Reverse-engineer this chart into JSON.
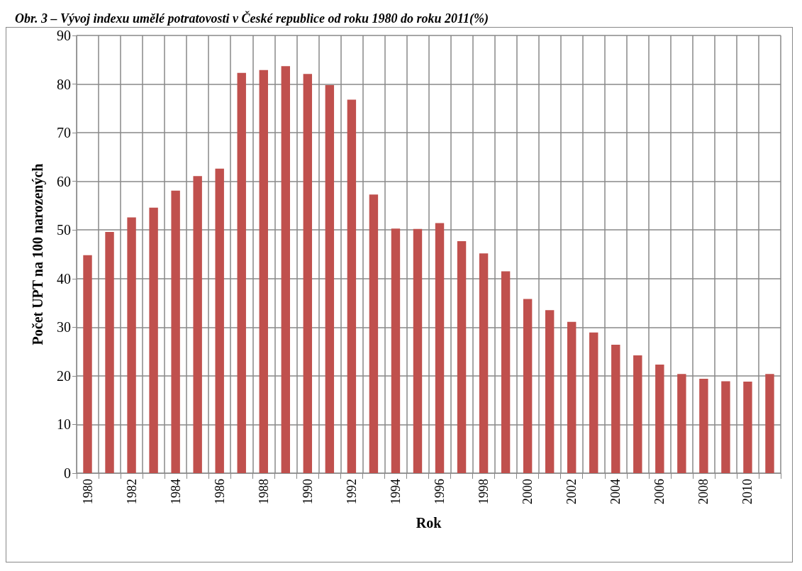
{
  "chart_data": {
    "type": "bar",
    "title": "Obr. 3 – Vývoj indexu umělé potratovosti v České republice od roku 1980 do roku 2011(%)",
    "xlabel": "Rok",
    "ylabel": "Počet UPT na 100 narozených",
    "categories": [
      "1980",
      null,
      "1982",
      null,
      "1984",
      null,
      "1986",
      null,
      "1988",
      null,
      "1990",
      null,
      "1992",
      null,
      "1994",
      null,
      "1996",
      null,
      "1998",
      null,
      "2000",
      null,
      "2002",
      null,
      "2004",
      null,
      "2006",
      null,
      "2008",
      null,
      "2010",
      null
    ],
    "values": [
      44.8,
      49.6,
      52.6,
      54.6,
      58.1,
      61.1,
      62.6,
      82.3,
      82.9,
      83.7,
      82.1,
      79.8,
      76.8,
      57.3,
      50.3,
      50.2,
      51.4,
      47.7,
      45.2,
      41.5,
      35.8,
      33.5,
      31.1,
      28.9,
      26.4,
      24.2,
      22.3,
      20.4,
      19.4,
      18.9,
      18.8,
      20.4
    ],
    "color": "#c0504d",
    "ylim": [
      0,
      90
    ],
    "yticks": [
      0,
      10,
      20,
      30,
      40,
      50,
      60,
      70,
      80,
      90
    ],
    "grid": true
  }
}
